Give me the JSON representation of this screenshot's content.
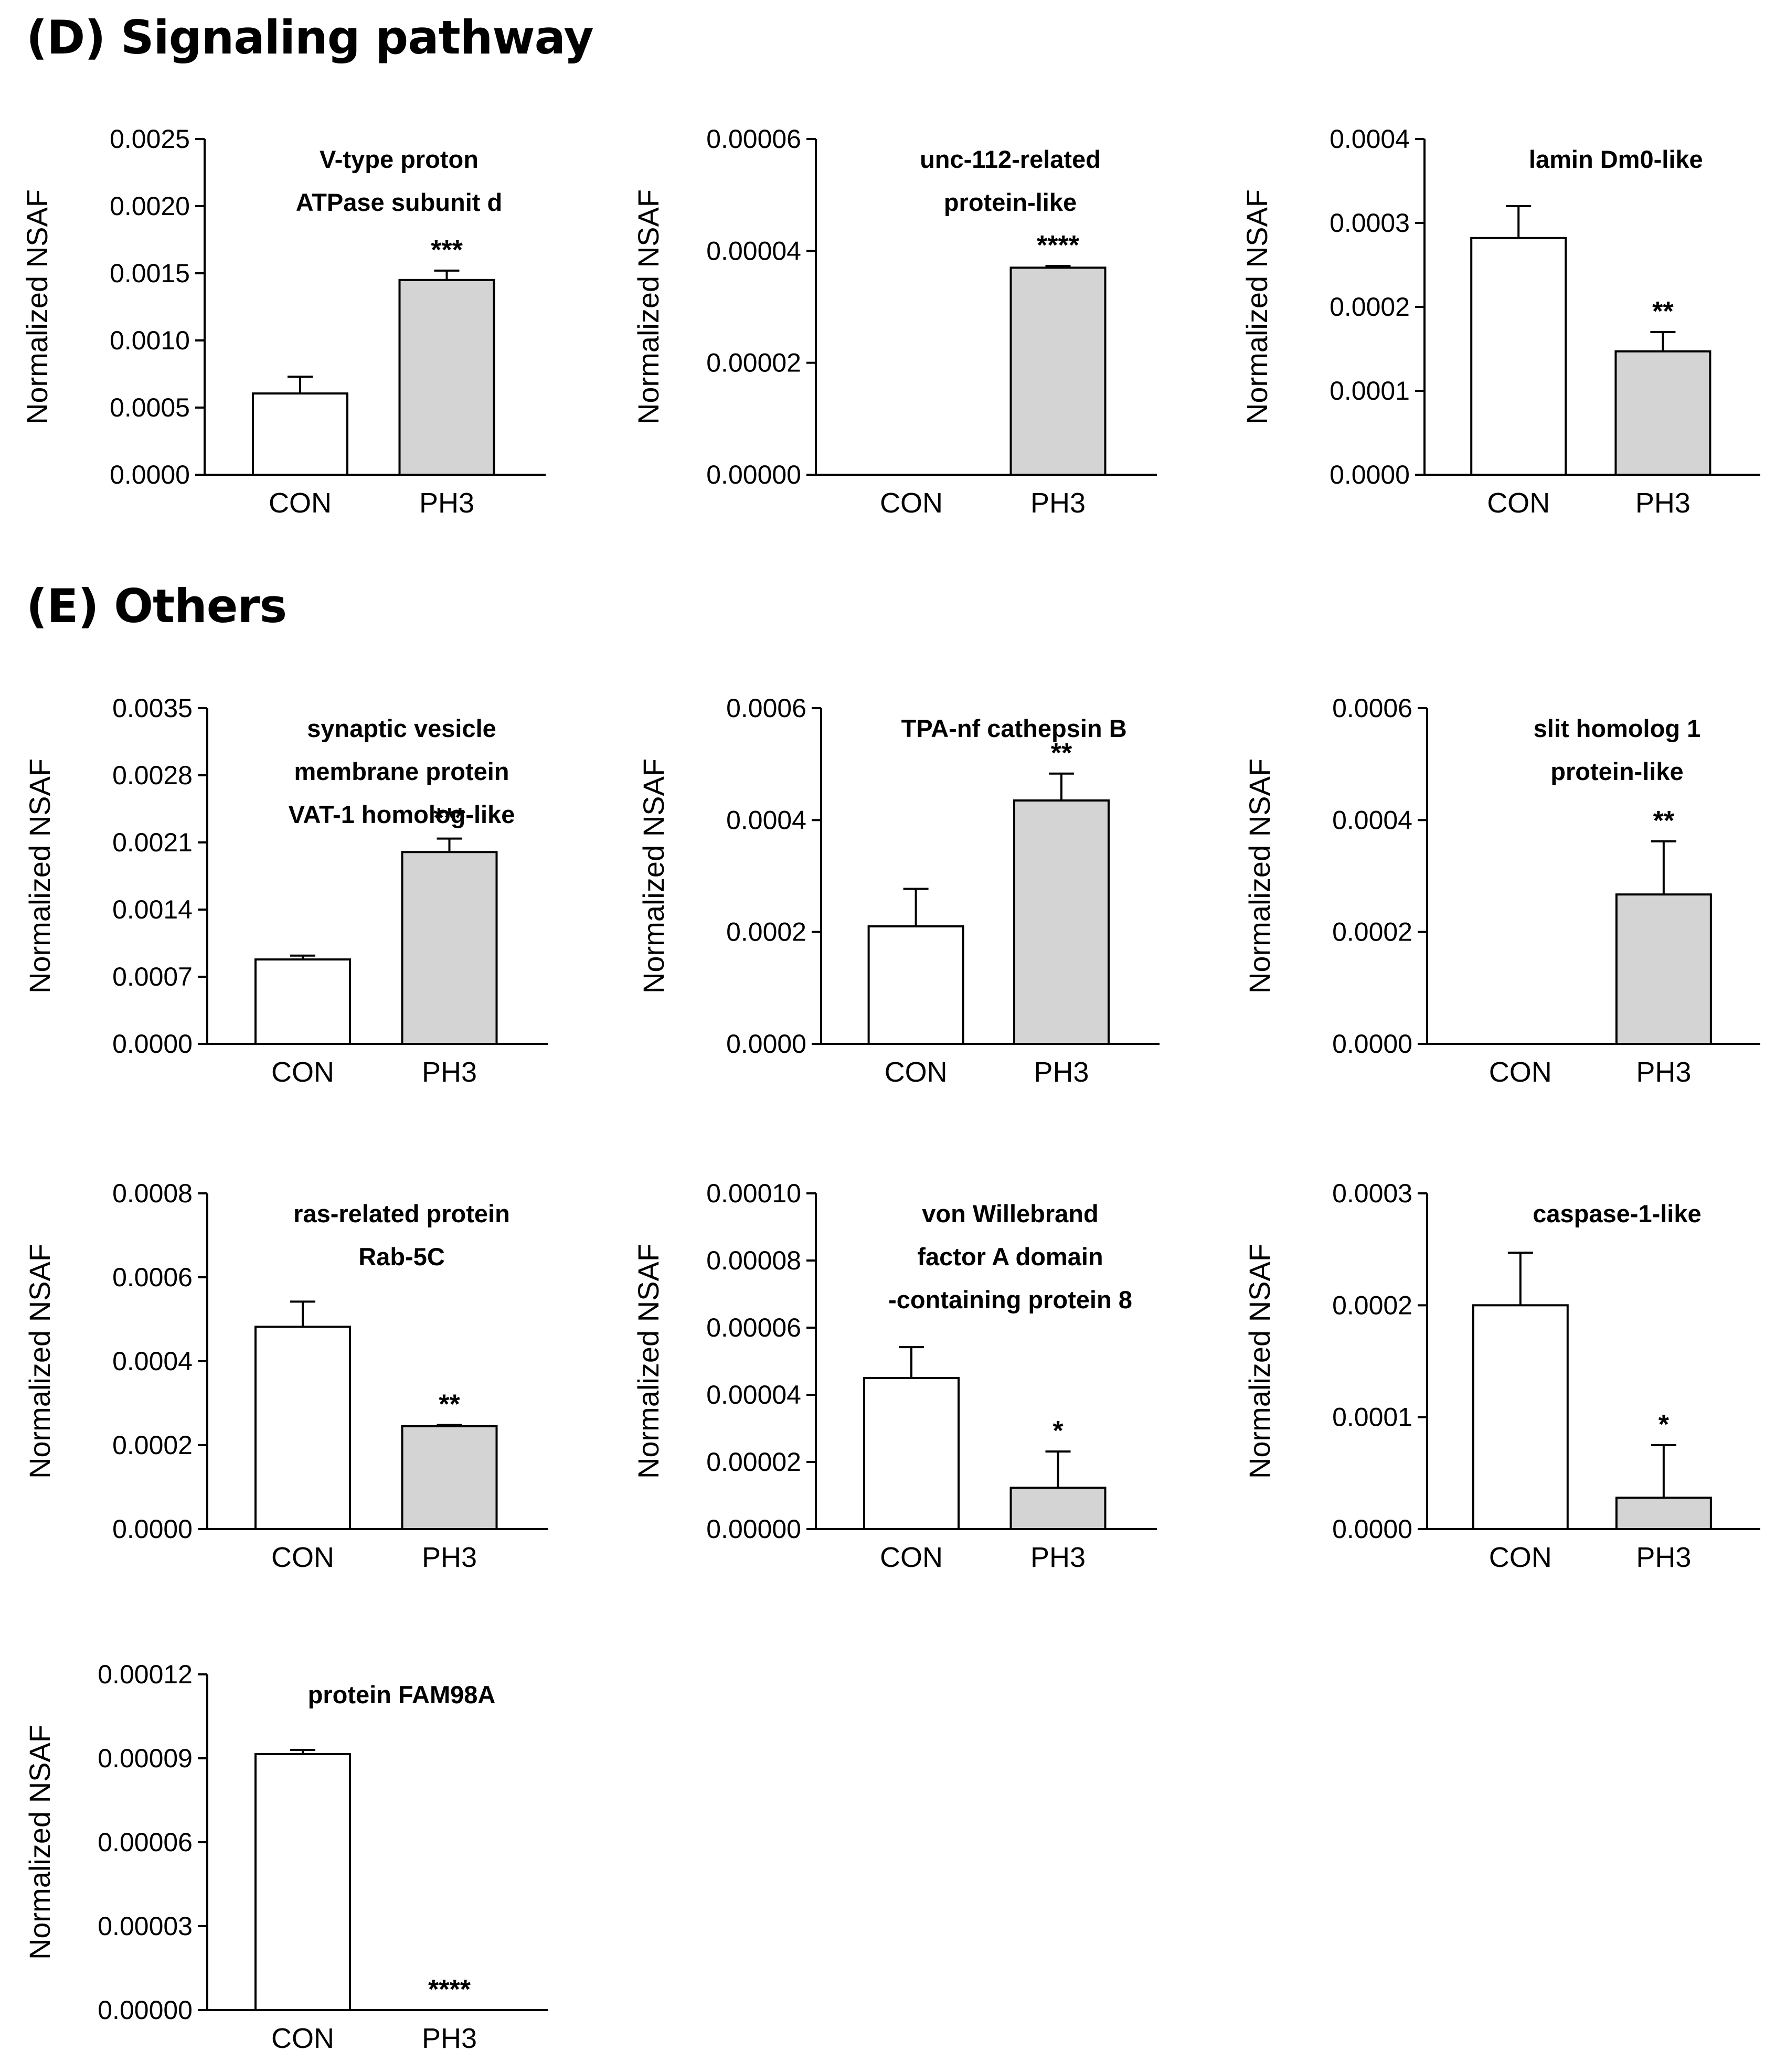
{
  "sections": [
    {
      "label": "(D) Signaling pathway"
    },
    {
      "label": "(E) Others"
    }
  ],
  "colors": {
    "con_fill": "#ffffff",
    "ph3_fill": "#d4d4d4",
    "stroke": "#000000"
  },
  "chart_data": [
    {
      "type": "bar",
      "title_lines": [
        "V-type proton",
        "ATPase subunit d"
      ],
      "ylabel": "Normalized NSAF",
      "categories": [
        "CON",
        "PH3"
      ],
      "values": [
        0.000605,
        0.00145
      ],
      "errors": [
        0.000125,
        7e-05
      ],
      "significance": [
        "",
        "***"
      ],
      "ylim": [
        0,
        0.0025
      ],
      "yticks": [
        "0.0000",
        "0.0005",
        "0.0010",
        "0.0015",
        "0.0020",
        "0.0025"
      ]
    },
    {
      "type": "bar",
      "title_lines": [
        "unc-112-related",
        "protein-like"
      ],
      "ylabel": "Normalized NSAF",
      "categories": [
        "CON",
        "PH3"
      ],
      "values": [
        0,
        3.7e-05
      ],
      "errors": [
        0,
        3e-07
      ],
      "significance": [
        "",
        "****"
      ],
      "ylim": [
        0,
        6e-05
      ],
      "yticks": [
        "0.00000",
        "0.00002",
        "0.00004",
        "0.00006"
      ]
    },
    {
      "type": "bar",
      "title_lines": [
        "lamin Dm0-like"
      ],
      "ylabel": "Normalized NSAF",
      "categories": [
        "CON",
        "PH3"
      ],
      "values": [
        0.000282,
        0.000147
      ],
      "errors": [
        3.8e-05,
        2.3e-05
      ],
      "significance": [
        "",
        "**"
      ],
      "ylim": [
        0,
        0.0004
      ],
      "yticks": [
        "0.0000",
        "0.0001",
        "0.0002",
        "0.0003",
        "0.0004"
      ]
    },
    {
      "type": "bar",
      "title_lines": [
        "synaptic vesicle",
        "membrane  protein",
        "VAT-1 homolog-like"
      ],
      "ylabel": "Normalized NSAF",
      "categories": [
        "CON",
        "PH3"
      ],
      "values": [
        0.00088,
        0.002
      ],
      "errors": [
        4e-05,
        0.00014
      ],
      "significance": [
        "",
        "***"
      ],
      "ylim": [
        0,
        0.0035
      ],
      "yticks": [
        "0.0000",
        "0.0007",
        "0.0014",
        "0.0021",
        "0.0028",
        "0.0035"
      ]
    },
    {
      "type": "bar",
      "title_lines": [
        "TPA-nf cathepsin B"
      ],
      "ylabel": "Normalized NSAF",
      "categories": [
        "CON",
        "PH3"
      ],
      "values": [
        0.00021,
        0.000435
      ],
      "errors": [
        6.7e-05,
        4.8e-05
      ],
      "significance": [
        "",
        "**"
      ],
      "ylim": [
        0,
        0.0006
      ],
      "yticks": [
        "0.0000",
        "0.0002",
        "0.0004",
        "0.0006"
      ]
    },
    {
      "type": "bar",
      "title_lines": [
        "slit homolog 1",
        "protein-like"
      ],
      "ylabel": "Normalized NSAF",
      "categories": [
        "CON",
        "PH3"
      ],
      "values": [
        0,
        0.000267
      ],
      "errors": [
        0,
        9.5e-05
      ],
      "significance": [
        "",
        "**"
      ],
      "ylim": [
        0,
        0.0006
      ],
      "yticks": [
        "0.0000",
        "0.0002",
        "0.0004",
        "0.0006"
      ]
    },
    {
      "type": "bar",
      "title_lines": [
        "ras-related protein",
        "Rab-5C"
      ],
      "ylabel": "Normalized NSAF",
      "categories": [
        "CON",
        "PH3"
      ],
      "values": [
        0.000482,
        0.000245
      ],
      "errors": [
        6e-05,
        3e-06
      ],
      "significance": [
        "",
        "**"
      ],
      "ylim": [
        0,
        0.0008
      ],
      "yticks": [
        "0.0000",
        "0.0002",
        "0.0004",
        "0.0006",
        "0.0008"
      ]
    },
    {
      "type": "bar",
      "title_lines": [
        "von Willebrand",
        "factor A domain",
        "-containing protein 8"
      ],
      "ylabel": "Normalized NSAF",
      "categories": [
        "CON",
        "PH3"
      ],
      "values": [
        4.5e-05,
        1.23e-05
      ],
      "errors": [
        9.2e-06,
        1.08e-05
      ],
      "significance": [
        "",
        "*"
      ],
      "ylim": [
        0,
        0.0001
      ],
      "yticks": [
        "0.00000",
        "0.00002",
        "0.00004",
        "0.00006",
        "0.00008",
        "0.00010"
      ]
    },
    {
      "type": "bar",
      "title_lines": [
        "caspase-1-like"
      ],
      "ylabel": "Normalized NSAF",
      "categories": [
        "CON",
        "PH3"
      ],
      "values": [
        0.0002,
        2.8e-05
      ],
      "errors": [
        4.7e-05,
        4.7e-05
      ],
      "significance": [
        "",
        "*"
      ],
      "ylim": [
        0,
        0.0003
      ],
      "yticks": [
        "0.0000",
        "0.0001",
        "0.0002",
        "0.0003"
      ]
    },
    {
      "type": "bar",
      "title_lines": [
        "protein FAM98A"
      ],
      "ylabel": "Normalized NSAF",
      "categories": [
        "CON",
        "PH3"
      ],
      "values": [
        9.15e-05,
        0
      ],
      "errors": [
        1.5e-06,
        0
      ],
      "significance": [
        "",
        "****"
      ],
      "ylim": [
        0,
        0.00012
      ],
      "yticks": [
        "0.00000",
        "0.00003",
        "0.00006",
        "0.00009",
        "0.00012"
      ]
    }
  ]
}
